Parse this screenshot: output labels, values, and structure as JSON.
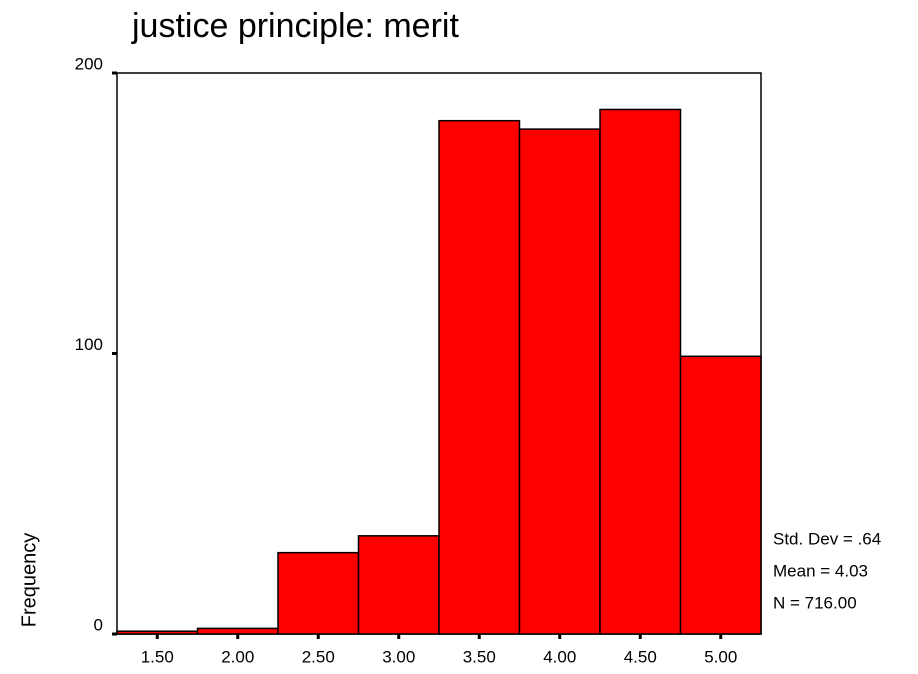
{
  "chart_data": {
    "type": "histogram",
    "title": "justice principle: merit",
    "y_label": "Frequency",
    "bins": [
      1.25,
      1.75,
      2.25,
      2.75,
      3.25,
      3.75,
      4.25,
      4.75,
      5.25
    ],
    "values": [
      1,
      2,
      29,
      35,
      183,
      180,
      187,
      99
    ],
    "color": "#ff0000",
    "xlim": [
      1.25,
      5.25
    ],
    "xticks": [
      {
        "value": 1.5,
        "label": "1.50"
      },
      {
        "value": 2,
        "label": "2.00"
      },
      {
        "value": 2.5,
        "label": "2.50"
      },
      {
        "value": 3,
        "label": "3.00"
      },
      {
        "value": 3.5,
        "label": "3.50"
      },
      {
        "value": 4,
        "label": "4.00"
      },
      {
        "value": 4.5,
        "label": "4.50"
      },
      {
        "value": 5,
        "label": "5.00"
      }
    ],
    "ylim": [
      0,
      200
    ],
    "yticks": [
      0,
      100,
      200
    ],
    "annotations": [
      "Std. Dev = .64",
      "Mean = 4.03",
      "N = 716.00"
    ]
  }
}
